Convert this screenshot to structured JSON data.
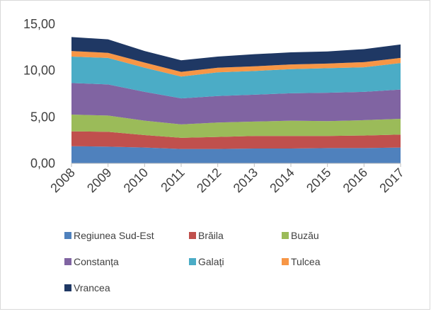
{
  "chart_data": {
    "type": "stacked_area",
    "categories": [
      "2008",
      "2009",
      "2010",
      "2011",
      "2012",
      "2013",
      "2014",
      "2015",
      "2016",
      "2017"
    ],
    "series": [
      {
        "name": "Regiunea Sud-Est",
        "color": "#4f81bd",
        "values": [
          1.85,
          1.8,
          1.7,
          1.55,
          1.55,
          1.6,
          1.6,
          1.65,
          1.65,
          1.7
        ]
      },
      {
        "name": "Brăila",
        "color": "#c0504d",
        "values": [
          1.6,
          1.6,
          1.35,
          1.2,
          1.3,
          1.35,
          1.35,
          1.3,
          1.35,
          1.4
        ]
      },
      {
        "name": "Buzău",
        "color": "#9bbb59",
        "values": [
          1.8,
          1.75,
          1.55,
          1.45,
          1.55,
          1.55,
          1.65,
          1.6,
          1.65,
          1.7
        ]
      },
      {
        "name": "Constanța",
        "color": "#8064a2",
        "values": [
          3.4,
          3.35,
          3.1,
          2.8,
          2.85,
          2.9,
          2.95,
          3.05,
          3.05,
          3.15
        ]
      },
      {
        "name": "Galați",
        "color": "#4bacc6",
        "values": [
          2.85,
          2.85,
          2.6,
          2.35,
          2.55,
          2.55,
          2.6,
          2.65,
          2.65,
          2.85
        ]
      },
      {
        "name": "Tulcea",
        "color": "#f79646",
        "values": [
          0.6,
          0.55,
          0.55,
          0.5,
          0.5,
          0.5,
          0.5,
          0.5,
          0.55,
          0.55
        ]
      },
      {
        "name": "Vrancea",
        "color": "#1f3864",
        "values": [
          1.5,
          1.45,
          1.25,
          1.25,
          1.2,
          1.3,
          1.3,
          1.3,
          1.4,
          1.45
        ]
      }
    ],
    "ylim": [
      0,
      15
    ],
    "yticks": [
      {
        "value": 0,
        "label": "0,00"
      },
      {
        "value": 5,
        "label": "5,00"
      },
      {
        "value": 10,
        "label": "10,00"
      },
      {
        "value": 15,
        "label": "15,00"
      }
    ],
    "grid": false,
    "legend": "bottom"
  }
}
